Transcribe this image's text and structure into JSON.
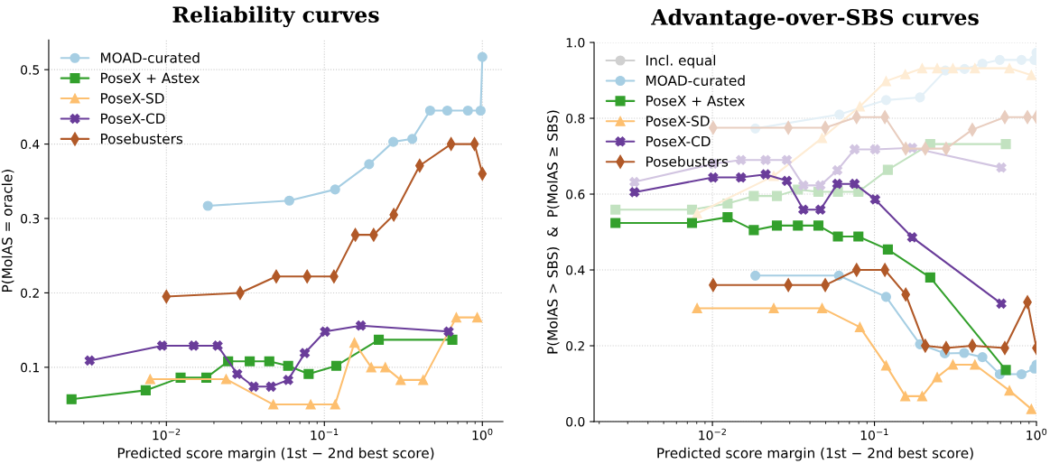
{
  "chart_data": [
    {
      "type": "line",
      "title": "Reliability curves",
      "xlabel": "Predicted score margin (1st − 2nd best score)",
      "ylabel": "P(MolAS = oracle)",
      "log": "x",
      "grid": true,
      "legend": "top left",
      "xlim": [
        0.0018,
        1.35
      ],
      "ylim": [
        0.027,
        0.54
      ],
      "xticks": [
        {
          "value": 0.01,
          "label": "10$^{−2}$"
        },
        {
          "value": 0.1,
          "label": "10$^{−1}$"
        },
        {
          "value": 1,
          "label": "10$^{0}$"
        }
      ],
      "yticks": [
        0.1,
        0.2,
        0.3,
        0.4,
        0.5
      ],
      "series": [
        {
          "name": "MOAD-curated",
          "color": "#a6cee3",
          "marker": "circle",
          "x": [
            0.0183,
            0.06,
            0.117,
            0.192,
            0.273,
            0.36,
            0.467,
            0.6,
            0.81,
            0.975,
            1.0
          ],
          "values": [
            0.317,
            0.324,
            0.339,
            0.373,
            0.403,
            0.407,
            0.445,
            0.445,
            0.445,
            0.445,
            0.517
          ]
        },
        {
          "name": "PoseX + Astex",
          "color": "#33a02c",
          "marker": "square",
          "x": [
            0.00251,
            0.0074,
            0.0123,
            0.0179,
            0.0246,
            0.0337,
            0.0448,
            0.059,
            0.0795,
            0.119,
            0.221,
            0.646
          ],
          "values": [
            0.057,
            0.069,
            0.086,
            0.086,
            0.108,
            0.108,
            0.108,
            0.102,
            0.091,
            0.102,
            0.137,
            0.137
          ]
        },
        {
          "name": "PoseX-SD",
          "color": "#fdbf6f",
          "marker": "triangle",
          "x": [
            0.0079,
            0.0239,
            0.0475,
            0.0819,
            0.117,
            0.155,
            0.198,
            0.243,
            0.304,
            0.422,
            0.684,
            0.928
          ],
          "values": [
            0.084,
            0.084,
            0.05,
            0.05,
            0.05,
            0.133,
            0.1,
            0.1,
            0.083,
            0.083,
            0.167,
            0.167
          ]
        },
        {
          "name": "PoseX-CD",
          "color": "#6a3d9a",
          "marker": "cross",
          "x": [
            0.00327,
            0.0094,
            0.0149,
            0.0211,
            0.0281,
            0.0357,
            0.046,
            0.059,
            0.0751,
            0.101,
            0.17,
            0.612
          ],
          "values": [
            0.109,
            0.129,
            0.129,
            0.129,
            0.091,
            0.074,
            0.074,
            0.083,
            0.119,
            0.148,
            0.156,
            0.148
          ]
        },
        {
          "name": "Posebusters",
          "color": "#b15928",
          "marker": "diamond",
          "x": [
            0.01,
            0.0293,
            0.0496,
            0.0778,
            0.115,
            0.157,
            0.205,
            0.275,
            0.401,
            0.634,
            0.892,
            1.0
          ],
          "values": [
            0.195,
            0.2,
            0.222,
            0.222,
            0.222,
            0.278,
            0.278,
            0.305,
            0.371,
            0.4,
            0.4,
            0.36
          ]
        }
      ]
    },
    {
      "type": "line",
      "title": "Advantage-over-SBS curves",
      "xlabel": "Predicted score margin (1st − 2nd best score)",
      "ylabel": "P(MolAS > SBS)  &  P(MolAS ≥ SBS)",
      "log": "x",
      "grid": true,
      "legend": "top left",
      "xlim": [
        0.00186,
        1.0
      ],
      "ylim": [
        0,
        1
      ],
      "xticks": [
        {
          "value": 0.01,
          "label": "10$^{−2}$"
        },
        {
          "value": 0.1,
          "label": "10$^{−1}$"
        },
        {
          "value": 1,
          "label": "10$^{0}$"
        }
      ],
      "yticks": [
        {
          "value": 0,
          "label": "0.0"
        },
        0.2,
        0.4,
        0.6,
        0.8,
        {
          "value": 1,
          "label": "1.0"
        }
      ],
      "series": [
        {
          "name": "Incl. equal",
          "color": "#d0d0d0",
          "marker": "circle"
        },
        {
          "color": "#e4f0f7",
          "marker": "circle",
          "x": [
            0.0184,
            0.0608,
            0.118,
            0.191,
            0.274,
            0.36,
            0.464,
            0.594,
            0.809,
            0.97,
            1.0
          ],
          "values": [
            0.773,
            0.81,
            0.848,
            0.855,
            0.926,
            0.93,
            0.944,
            0.954,
            0.954,
            0.954,
            0.973
          ]
        },
        {
          "color": "#c2e2c0",
          "marker": "square",
          "x": [
            0.00252,
            0.00748,
            0.0124,
            0.018,
            0.025,
            0.0337,
            0.0451,
            0.0595,
            0.0796,
            0.121,
            0.221,
            0.647
          ],
          "values": [
            0.559,
            0.559,
            0.575,
            0.595,
            0.595,
            0.612,
            0.606,
            0.606,
            0.606,
            0.664,
            0.732,
            0.732
          ]
        },
        {
          "color": "#feecd4",
          "marker": "triangle",
          "x": [
            0.00804,
            0.0239,
            0.0475,
            0.0813,
            0.118,
            0.155,
            0.197,
            0.244,
            0.305,
            0.417,
            0.681,
            0.93
          ],
          "values": [
            0.549,
            0.648,
            0.748,
            0.831,
            0.898,
            0.916,
            0.932,
            0.932,
            0.932,
            0.932,
            0.932,
            0.914
          ]
        },
        {
          "color": "#d2c5e1",
          "marker": "cross",
          "x": [
            0.0033,
            0.0101,
            0.015,
            0.0213,
            0.0288,
            0.0364,
            0.0464,
            0.059,
            0.0754,
            0.101,
            0.171,
            0.607
          ],
          "values": [
            0.632,
            0.68,
            0.69,
            0.69,
            0.69,
            0.623,
            0.623,
            0.663,
            0.718,
            0.718,
            0.722,
            0.67
          ]
        },
        {
          "color": "#e8cdbf",
          "marker": "diamond",
          "x": [
            0.0101,
            0.0294,
            0.0497,
            0.0776,
            0.116,
            0.156,
            0.206,
            0.277,
            0.402,
            0.638,
            0.88,
            1.0
          ],
          "values": [
            0.775,
            0.775,
            0.775,
            0.803,
            0.803,
            0.72,
            0.72,
            0.72,
            0.77,
            0.803,
            0.803,
            0.803
          ]
        },
        {
          "name": "MOAD-curated",
          "color": "#a6cee3",
          "marker": "circle",
          "x": [
            0.0184,
            0.0603,
            0.118,
            0.191,
            0.272,
            0.358,
            0.464,
            0.594,
            0.809,
            0.97,
            1.0
          ],
          "values": [
            0.385,
            0.385,
            0.329,
            0.204,
            0.18,
            0.181,
            0.17,
            0.125,
            0.125,
            0.14,
            0.15
          ]
        },
        {
          "name": "PoseX + Astex",
          "color": "#33a02c",
          "marker": "square",
          "x": [
            0.00252,
            0.00748,
            0.0124,
            0.018,
            0.025,
            0.0337,
            0.0451,
            0.0595,
            0.0796,
            0.121,
            0.221,
            0.647
          ],
          "values": [
            0.524,
            0.524,
            0.539,
            0.505,
            0.517,
            0.517,
            0.517,
            0.488,
            0.488,
            0.454,
            0.38,
            0.136
          ]
        },
        {
          "name": "PoseX-SD",
          "color": "#fdbf6f",
          "marker": "triangle",
          "x": [
            0.00804,
            0.0239,
            0.0475,
            0.0813,
            0.118,
            0.155,
            0.197,
            0.244,
            0.305,
            0.417,
            0.681,
            0.93
          ],
          "values": [
            0.299,
            0.299,
            0.299,
            0.249,
            0.148,
            0.067,
            0.067,
            0.117,
            0.15,
            0.15,
            0.082,
            0.033
          ]
        },
        {
          "name": "PoseX-CD",
          "color": "#6a3d9a",
          "marker": "cross",
          "x": [
            0.0033,
            0.0101,
            0.015,
            0.0213,
            0.0288,
            0.0364,
            0.0464,
            0.059,
            0.0754,
            0.101,
            0.171,
            0.607
          ],
          "values": [
            0.605,
            0.644,
            0.644,
            0.652,
            0.635,
            0.559,
            0.559,
            0.627,
            0.627,
            0.586,
            0.486,
            0.311
          ]
        },
        {
          "name": "Posebusters",
          "color": "#b15928",
          "marker": "diamond",
          "x": [
            0.0101,
            0.0294,
            0.0497,
            0.0776,
            0.116,
            0.156,
            0.206,
            0.277,
            0.402,
            0.638,
            0.88,
            1.0
          ],
          "values": [
            0.36,
            0.36,
            0.36,
            0.4,
            0.4,
            0.335,
            0.2,
            0.194,
            0.2,
            0.194,
            0.315,
            0.194
          ]
        }
      ]
    }
  ]
}
